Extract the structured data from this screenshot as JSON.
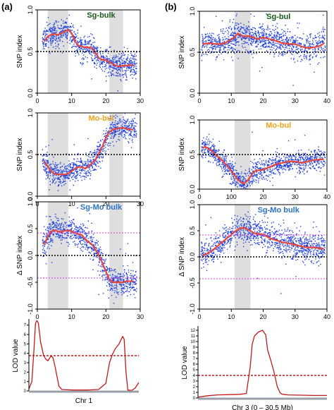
{
  "figure": {
    "panel_a_label": "(a)",
    "panel_b_label": "(b)"
  },
  "colors": {
    "scatter": "#1f3fe0",
    "fit": "#e8463c",
    "threshold": "#000000",
    "ci": "#e24be0",
    "highlight": "#dedede",
    "lod": "#c21a1a",
    "title_green": "#1a5c1a",
    "title_orange": "#f0a418",
    "title_blue": "#2b74c6"
  },
  "chart_data": [
    {
      "id": "a1",
      "type": "scatter",
      "title": "Sg-bulk",
      "title_color": "title_green",
      "xlabel": "",
      "ylabel": "SNP index",
      "xlim": [
        0,
        30
      ],
      "ylim": [
        0,
        1
      ],
      "xticks": [
        "0",
        "10",
        "20",
        "30"
      ],
      "yticks": [
        "0.0",
        "0.5",
        "1.0"
      ],
      "highlight": [
        [
          3,
          9
        ],
        [
          21,
          25
        ]
      ],
      "hlines": [
        {
          "y": 0.5,
          "style": "threshold"
        }
      ],
      "scatter": {
        "x_range": [
          1.5,
          29
        ],
        "spread": 0.15
      },
      "series": [
        {
          "x": [
            2,
            3,
            4,
            5,
            6,
            7,
            8,
            9,
            10,
            11,
            12,
            13,
            14,
            15,
            16,
            17,
            18,
            19,
            20,
            21,
            22,
            23,
            24,
            25,
            26,
            27,
            28
          ],
          "values": [
            0.62,
            0.68,
            0.7,
            0.71,
            0.7,
            0.72,
            0.74,
            0.76,
            0.72,
            0.62,
            0.57,
            0.56,
            0.55,
            0.55,
            0.54,
            0.48,
            0.42,
            0.4,
            0.4,
            0.37,
            0.35,
            0.33,
            0.32,
            0.33,
            0.33,
            0.34,
            0.33
          ]
        }
      ]
    },
    {
      "id": "a2",
      "type": "scatter",
      "title": "Mo-bul",
      "title_color": "title_orange",
      "xlabel": "",
      "ylabel": "SNP index",
      "xlim": [
        0,
        30
      ],
      "ylim": [
        0,
        1
      ],
      "xticks": [
        "0",
        "10",
        "20",
        "30"
      ],
      "yticks": [
        "0.0",
        "0.5",
        "1.0"
      ],
      "highlight": [
        [
          3,
          9
        ],
        [
          21,
          25
        ]
      ],
      "hlines": [
        {
          "y": 0.5,
          "style": "threshold"
        }
      ],
      "scatter": {
        "x_range": [
          1.5,
          29
        ],
        "spread": 0.14
      },
      "series": [
        {
          "x": [
            2,
            3,
            4,
            5,
            6,
            7,
            8,
            9,
            10,
            11,
            12,
            13,
            14,
            15,
            16,
            17,
            18,
            19,
            20,
            21,
            22,
            23,
            24,
            25,
            26,
            27,
            28
          ],
          "values": [
            0.42,
            0.36,
            0.3,
            0.27,
            0.26,
            0.26,
            0.26,
            0.27,
            0.3,
            0.33,
            0.35,
            0.35,
            0.33,
            0.36,
            0.4,
            0.44,
            0.52,
            0.6,
            0.7,
            0.77,
            0.8,
            0.81,
            0.82,
            0.82,
            0.81,
            0.8,
            0.8
          ]
        }
      ]
    },
    {
      "id": "a3",
      "type": "scatter",
      "title": "Sg-Mo bulk",
      "title_color": "title_blue",
      "xlabel": "",
      "ylabel": "Δ SNP index",
      "xlim": [
        0,
        30
      ],
      "ylim": [
        -1,
        1
      ],
      "xticks": [
        "0",
        "10",
        "20",
        "30"
      ],
      "yticks": [
        "-1.0",
        "-0.5",
        "0.0",
        "0.5",
        "1.0"
      ],
      "highlight": [
        [
          3,
          9
        ],
        [
          21,
          25
        ]
      ],
      "hlines": [
        {
          "y": 0,
          "style": "threshold"
        },
        {
          "y": 0.42,
          "style": "ci"
        },
        {
          "y": -0.42,
          "style": "ci"
        }
      ],
      "scatter": {
        "x_range": [
          1.5,
          29
        ],
        "spread": 0.12
      },
      "series": [
        {
          "x": [
            2,
            3,
            4,
            5,
            6,
            7,
            8,
            9,
            10,
            11,
            12,
            13,
            14,
            15,
            16,
            17,
            18,
            19,
            20,
            21,
            22,
            23,
            24,
            25,
            26,
            27,
            28
          ],
          "values": [
            0.2,
            0.35,
            0.45,
            0.47,
            0.45,
            0.44,
            0.46,
            0.47,
            0.45,
            0.42,
            0.4,
            0.38,
            0.3,
            0.25,
            0.2,
            0.1,
            0.0,
            -0.15,
            -0.3,
            -0.45,
            -0.5,
            -0.5,
            -0.5,
            -0.5,
            -0.48,
            -0.48,
            -0.48
          ]
        }
      ]
    },
    {
      "id": "a4",
      "type": "line",
      "title": "",
      "title_color": "",
      "xlabel": "Chr 1",
      "ylabel": "LOD value",
      "xlim": [
        0,
        30
      ],
      "ylim": [
        0,
        7.5
      ],
      "xticks": [],
      "yticks": [
        "0",
        "1",
        "2",
        "3",
        "4",
        "5",
        "6",
        "7"
      ],
      "highlight": [],
      "hlines": [
        {
          "y": 3.75,
          "style": "lod_threshold"
        }
      ],
      "series": [
        {
          "x": [
            0,
            0.8,
            1.4,
            1.8,
            2.2,
            2.6,
            3.2,
            4.0,
            4.6,
            5.2,
            5.8,
            6.2,
            6.6,
            7.2,
            8.2,
            9.0,
            12,
            16,
            19,
            21,
            22,
            22.8,
            23.6,
            24.6,
            25.6,
            26.0,
            26.5,
            27,
            28,
            29,
            30
          ],
          "values": [
            0.2,
            1.0,
            4.5,
            7.2,
            7.5,
            7.2,
            5.2,
            3.8,
            3.4,
            3.2,
            3.6,
            3.7,
            3.5,
            2.5,
            0.5,
            0.15,
            0.1,
            0.1,
            0.15,
            0.8,
            3.0,
            3.9,
            4.5,
            5.0,
            5.8,
            5.5,
            2.0,
            0.1,
            0.05,
            0.3,
            0.9
          ]
        }
      ]
    },
    {
      "id": "b1",
      "type": "scatter",
      "title": "Sg-bul",
      "title_color": "title_green",
      "xlabel": "",
      "ylabel": "SNP index",
      "xlim": [
        0,
        40
      ],
      "ylim": [
        0,
        1
      ],
      "xticks": [
        "0",
        "10",
        "20",
        "30",
        "40"
      ],
      "yticks": [
        "0.0",
        "0.5",
        "1.0"
      ],
      "highlight": [
        [
          11,
          16
        ]
      ],
      "hlines": [
        {
          "y": 0.5,
          "style": "threshold"
        }
      ],
      "scatter": {
        "x_range": [
          0.5,
          39.5
        ],
        "spread": 0.17
      },
      "series": [
        {
          "x": [
            1,
            3,
            5,
            7,
            9,
            10,
            11,
            12,
            13,
            14,
            15,
            16,
            17,
            18,
            19,
            20,
            22,
            24,
            26,
            28,
            30,
            32,
            34,
            36,
            38,
            39
          ],
          "values": [
            0.6,
            0.61,
            0.6,
            0.6,
            0.63,
            0.66,
            0.68,
            0.73,
            0.71,
            0.69,
            0.7,
            0.69,
            0.68,
            0.66,
            0.67,
            0.68,
            0.66,
            0.64,
            0.61,
            0.6,
            0.6,
            0.57,
            0.55,
            0.56,
            0.58,
            0.61
          ]
        }
      ]
    },
    {
      "id": "b2",
      "type": "scatter",
      "title": "Mo-bul",
      "title_color": "title_orange",
      "xlabel": "",
      "ylabel": "SNP index",
      "xlim": [
        0,
        40
      ],
      "ylim": [
        0,
        1
      ],
      "xticks": [
        "0",
        "100",
        "20",
        "30",
        "40"
      ],
      "yticks": [
        "0.0",
        "0.5",
        "1.0"
      ],
      "highlight": [
        [
          11,
          16
        ]
      ],
      "hlines": [
        {
          "y": 0.5,
          "style": "threshold"
        }
      ],
      "scatter": {
        "x_range": [
          0.5,
          39.5
        ],
        "spread": 0.15
      },
      "series": [
        {
          "x": [
            1,
            2,
            3,
            4,
            5,
            6,
            7,
            8,
            9,
            10,
            11,
            12,
            13,
            14,
            15,
            16,
            17,
            18,
            20,
            22,
            24,
            26,
            28,
            30,
            32,
            34,
            36,
            38,
            39
          ],
          "values": [
            0.6,
            0.61,
            0.58,
            0.55,
            0.5,
            0.46,
            0.42,
            0.37,
            0.32,
            0.26,
            0.2,
            0.14,
            0.1,
            0.08,
            0.12,
            0.18,
            0.25,
            0.27,
            0.28,
            0.32,
            0.36,
            0.38,
            0.4,
            0.4,
            0.38,
            0.4,
            0.42,
            0.43,
            0.43
          ]
        }
      ]
    },
    {
      "id": "b3",
      "type": "scatter",
      "title": "Sg-Mo bulk",
      "title_color": "title_blue",
      "xlabel": "",
      "ylabel": "Δ SNP index",
      "xlim": [
        0,
        40
      ],
      "ylim": [
        -1,
        1
      ],
      "xticks": [
        "0",
        "10",
        "20",
        "30",
        "40"
      ],
      "yticks": [
        "-1.0",
        "-0.5",
        "0.0",
        "0.5",
        "1.0"
      ],
      "highlight": [
        [
          11,
          16
        ]
      ],
      "hlines": [
        {
          "y": 0,
          "style": "threshold"
        },
        {
          "y": 0.42,
          "style": "ci"
        },
        {
          "y": -0.42,
          "style": "ci"
        }
      ],
      "scatter": {
        "x_range": [
          0.5,
          39.5
        ],
        "spread": 0.13
      },
      "series": [
        {
          "x": [
            1,
            2,
            3,
            4,
            5,
            6,
            7,
            8,
            9,
            10,
            11,
            12,
            13,
            14,
            15,
            16,
            17,
            18,
            20,
            22,
            24,
            26,
            28,
            30,
            32,
            34,
            36,
            38,
            39
          ],
          "values": [
            0.02,
            0.05,
            0.08,
            0.12,
            0.17,
            0.22,
            0.28,
            0.32,
            0.38,
            0.42,
            0.48,
            0.52,
            0.55,
            0.56,
            0.53,
            0.5,
            0.46,
            0.44,
            0.43,
            0.36,
            0.32,
            0.28,
            0.26,
            0.23,
            0.2,
            0.18,
            0.18,
            0.16,
            0.16
          ]
        }
      ]
    },
    {
      "id": "b4",
      "type": "line",
      "title": "",
      "title_color": "",
      "xlabel": "Chr 3 (0 – 30.5 Mb)",
      "ylabel": "LOD value",
      "xlim": [
        0,
        40
      ],
      "ylim": [
        0,
        12.5
      ],
      "xticks": [],
      "yticks": [
        "0",
        "1",
        "2",
        "3",
        "4",
        "5",
        "6",
        "7",
        "8",
        "9",
        "10",
        "11",
        "12"
      ],
      "highlight": [],
      "hlines": [
        {
          "y": 4,
          "style": "lod_threshold"
        }
      ],
      "series": [
        {
          "x": [
            0,
            3,
            6,
            10,
            13,
            15,
            16.2,
            16.8,
            17.5,
            18.8,
            20,
            21,
            21.6,
            22.4,
            23.5,
            24.6,
            25.5,
            26,
            27,
            28,
            32,
            36,
            40
          ],
          "values": [
            0.15,
            0.4,
            0.55,
            0.6,
            0.65,
            0.8,
            5.5,
            9.5,
            11.0,
            11.7,
            12.0,
            11.2,
            8.5,
            7.0,
            4.8,
            2.0,
            0.9,
            0.7,
            0.6,
            0.55,
            0.5,
            0.45,
            0.45
          ]
        }
      ]
    }
  ]
}
